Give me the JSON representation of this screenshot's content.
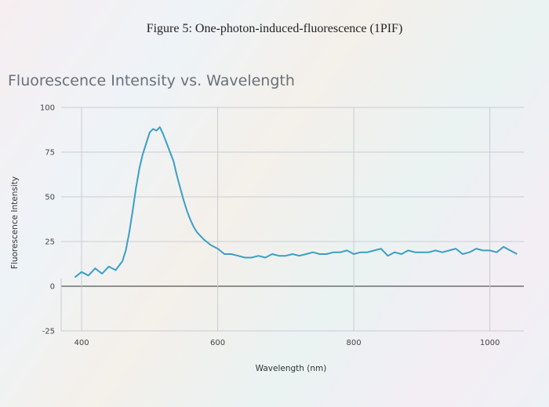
{
  "figure_caption": "Figure 5: One-photon-induced-fluorescence (1PIF)",
  "chart_data": {
    "type": "line",
    "title": "Fluorescence Intensity vs. Wavelength",
    "xlabel": "Wavelength (nm)",
    "ylabel": "Fluorescence Intensity",
    "xlim": [
      370,
      1050
    ],
    "ylim": [
      -25,
      100
    ],
    "xticks": [
      400,
      600,
      800,
      1000
    ],
    "yticks": [
      -25,
      0,
      25,
      50,
      75,
      100
    ],
    "grid": true,
    "series": [
      {
        "color": "#3a9fc4",
        "x": [
          390,
          400,
          410,
          420,
          430,
          440,
          450,
          460,
          465,
          470,
          475,
          480,
          485,
          490,
          495,
          500,
          505,
          510,
          515,
          520,
          525,
          530,
          535,
          540,
          545,
          550,
          555,
          560,
          565,
          570,
          575,
          580,
          590,
          600,
          610,
          620,
          630,
          640,
          650,
          660,
          670,
          680,
          690,
          700,
          710,
          720,
          730,
          740,
          750,
          760,
          770,
          780,
          790,
          800,
          810,
          820,
          830,
          840,
          850,
          860,
          870,
          880,
          890,
          900,
          910,
          920,
          930,
          940,
          950,
          960,
          970,
          980,
          990,
          1000,
          1010,
          1020,
          1030,
          1040
        ],
        "y": [
          5,
          8,
          6,
          10,
          7,
          11,
          9,
          14,
          20,
          30,
          42,
          55,
          66,
          74,
          80,
          86,
          88,
          87,
          89,
          85,
          80,
          75,
          70,
          62,
          55,
          48,
          42,
          37,
          33,
          30,
          28,
          26,
          23,
          21,
          18,
          18,
          17,
          16,
          16,
          17,
          16,
          18,
          17,
          17,
          18,
          17,
          18,
          19,
          18,
          18,
          19,
          19,
          20,
          18,
          19,
          19,
          20,
          21,
          17,
          19,
          18,
          20,
          19,
          19,
          19,
          20,
          19,
          20,
          21,
          18,
          19,
          21,
          20,
          20,
          19,
          22,
          20,
          18
        ]
      }
    ]
  }
}
